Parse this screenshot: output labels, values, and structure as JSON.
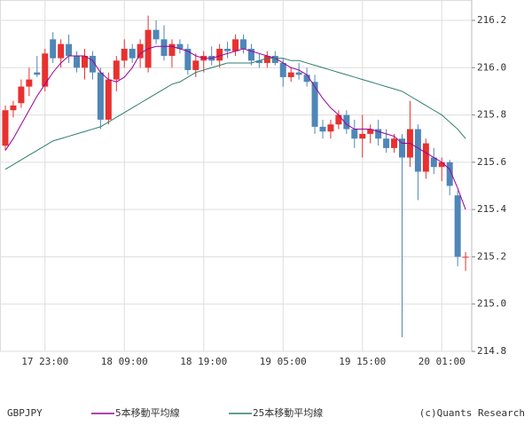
{
  "chart_data": {
    "type": "candlestick",
    "symbol": "GBPJPY",
    "credit": "(c)Quants Research",
    "up_color": "#e8312f",
    "down_color": "#4f86b8",
    "categories": [
      null,
      null,
      null,
      null,
      null,
      "17 23:00",
      null,
      null,
      null,
      null,
      null,
      null,
      null,
      null,
      null,
      "18 09:00",
      null,
      null,
      null,
      null,
      null,
      null,
      null,
      null,
      null,
      "18 19:00",
      null,
      null,
      null,
      null,
      null,
      null,
      null,
      null,
      null,
      "19 05:00",
      null,
      null,
      null,
      null,
      null,
      null,
      null,
      null,
      null,
      "19 15:00",
      null,
      null,
      null,
      null,
      null,
      null,
      null,
      null,
      null,
      "20 01:00",
      null,
      null,
      null
    ],
    "open": [
      215.67,
      215.82,
      215.85,
      215.92,
      215.98,
      215.92,
      216.12,
      216.04,
      216.1,
      216.05,
      216.0,
      216.05,
      215.98,
      215.78,
      215.95,
      216.03,
      216.08,
      216.04,
      216.0,
      216.16,
      216.12,
      216.05,
      216.1,
      216.08,
      215.99,
      216.03,
      216.05,
      216.03,
      216.08,
      216.07,
      216.12,
      216.08,
      216.03,
      216.02,
      216.05,
      216.02,
      215.96,
      215.98,
      215.97,
      215.94,
      215.75,
      215.73,
      215.76,
      215.8,
      215.74,
      215.7,
      215.72,
      215.74,
      215.7,
      215.66,
      215.7,
      215.62,
      215.74,
      215.56,
      215.62,
      215.58,
      215.6,
      215.46,
      215.2
    ],
    "high": [
      215.84,
      215.86,
      215.95,
      216.0,
      216.05,
      216.08,
      216.15,
      216.12,
      216.14,
      216.07,
      216.08,
      216.07,
      216.0,
      215.98,
      216.05,
      216.12,
      216.1,
      216.12,
      216.22,
      216.2,
      216.18,
      216.12,
      216.12,
      216.1,
      216.06,
      216.07,
      216.09,
      216.1,
      216.11,
      216.14,
      216.14,
      216.1,
      216.06,
      216.07,
      216.07,
      216.04,
      216.0,
      216.02,
      216.0,
      215.97,
      215.78,
      215.78,
      215.82,
      215.82,
      215.78,
      215.8,
      215.76,
      215.78,
      215.74,
      215.72,
      215.72,
      215.86,
      215.76,
      215.7,
      215.66,
      215.62,
      215.61,
      215.48,
      215.22
    ],
    "low": [
      215.65,
      215.79,
      215.83,
      215.88,
      215.96,
      215.9,
      216.02,
      216.0,
      216.02,
      215.98,
      215.95,
      215.95,
      215.74,
      215.76,
      215.9,
      216.0,
      216.02,
      216.0,
      215.98,
      216.1,
      216.03,
      216.0,
      216.06,
      215.97,
      215.96,
      215.98,
      216.01,
      216.0,
      216.04,
      216.05,
      216.06,
      216.01,
      216.0,
      216.0,
      216.01,
      215.92,
      215.94,
      215.95,
      215.92,
      215.72,
      215.7,
      215.7,
      215.74,
      215.72,
      215.66,
      215.62,
      215.68,
      215.67,
      215.64,
      215.64,
      214.86,
      215.58,
      215.44,
      215.53,
      215.55,
      215.52,
      215.46,
      215.16,
      215.14
    ],
    "close": [
      215.82,
      215.84,
      215.92,
      215.95,
      215.97,
      216.06,
      216.04,
      216.1,
      216.05,
      216.0,
      216.05,
      215.98,
      215.78,
      215.95,
      216.03,
      216.08,
      216.04,
      216.1,
      216.16,
      216.12,
      216.05,
      216.1,
      216.08,
      215.99,
      216.03,
      216.05,
      216.03,
      216.08,
      216.07,
      216.12,
      216.08,
      216.03,
      216.02,
      216.05,
      216.02,
      215.96,
      215.98,
      215.97,
      215.94,
      215.75,
      215.73,
      215.76,
      215.8,
      215.74,
      215.7,
      215.72,
      215.74,
      215.7,
      215.66,
      215.7,
      215.62,
      215.74,
      215.56,
      215.68,
      215.58,
      215.6,
      215.5,
      215.2,
      215.2
    ],
    "lines": [
      {
        "name": "5本移動平均線",
        "color": "#990099",
        "values": [
          215.65,
          215.7,
          215.76,
          215.82,
          215.88,
          215.93,
          215.98,
          216.02,
          216.05,
          216.05,
          216.05,
          216.03,
          215.98,
          215.95,
          215.94,
          215.96,
          216.0,
          216.06,
          216.08,
          216.09,
          216.09,
          216.09,
          216.08,
          216.07,
          216.05,
          216.04,
          216.04,
          216.05,
          216.06,
          216.07,
          216.08,
          216.07,
          216.06,
          216.05,
          216.04,
          216.02,
          216.0,
          215.99,
          215.97,
          215.92,
          215.87,
          215.83,
          215.8,
          215.76,
          215.74,
          215.74,
          215.74,
          215.73,
          215.72,
          215.71,
          215.68,
          215.68,
          215.66,
          215.64,
          215.62,
          215.6,
          215.57,
          215.49,
          215.4
        ]
      },
      {
        "name": "25本移動平均線",
        "color": "#2e7d6e",
        "values": [
          215.57,
          215.59,
          215.61,
          215.63,
          215.65,
          215.67,
          215.69,
          215.7,
          215.71,
          215.72,
          215.73,
          215.74,
          215.75,
          215.77,
          215.79,
          215.81,
          215.83,
          215.85,
          215.87,
          215.89,
          215.91,
          215.93,
          215.94,
          215.96,
          215.98,
          215.99,
          216.0,
          216.01,
          216.02,
          216.02,
          216.02,
          216.02,
          216.03,
          216.04,
          216.04,
          216.04,
          216.03,
          216.03,
          216.02,
          216.01,
          216.0,
          215.99,
          215.98,
          215.97,
          215.96,
          215.95,
          215.94,
          215.93,
          215.92,
          215.91,
          215.9,
          215.88,
          215.86,
          215.84,
          215.82,
          215.8,
          215.77,
          215.74,
          215.7
        ]
      }
    ],
    "ylim": [
      214.8,
      216.2
    ],
    "yticks": [
      214.8,
      {
        "value": 215,
        "label": "215.0"
      },
      215.2,
      215.4,
      215.6,
      215.8,
      {
        "value": 216,
        "label": "216.0"
      },
      216.2
    ],
    "grid": true
  }
}
